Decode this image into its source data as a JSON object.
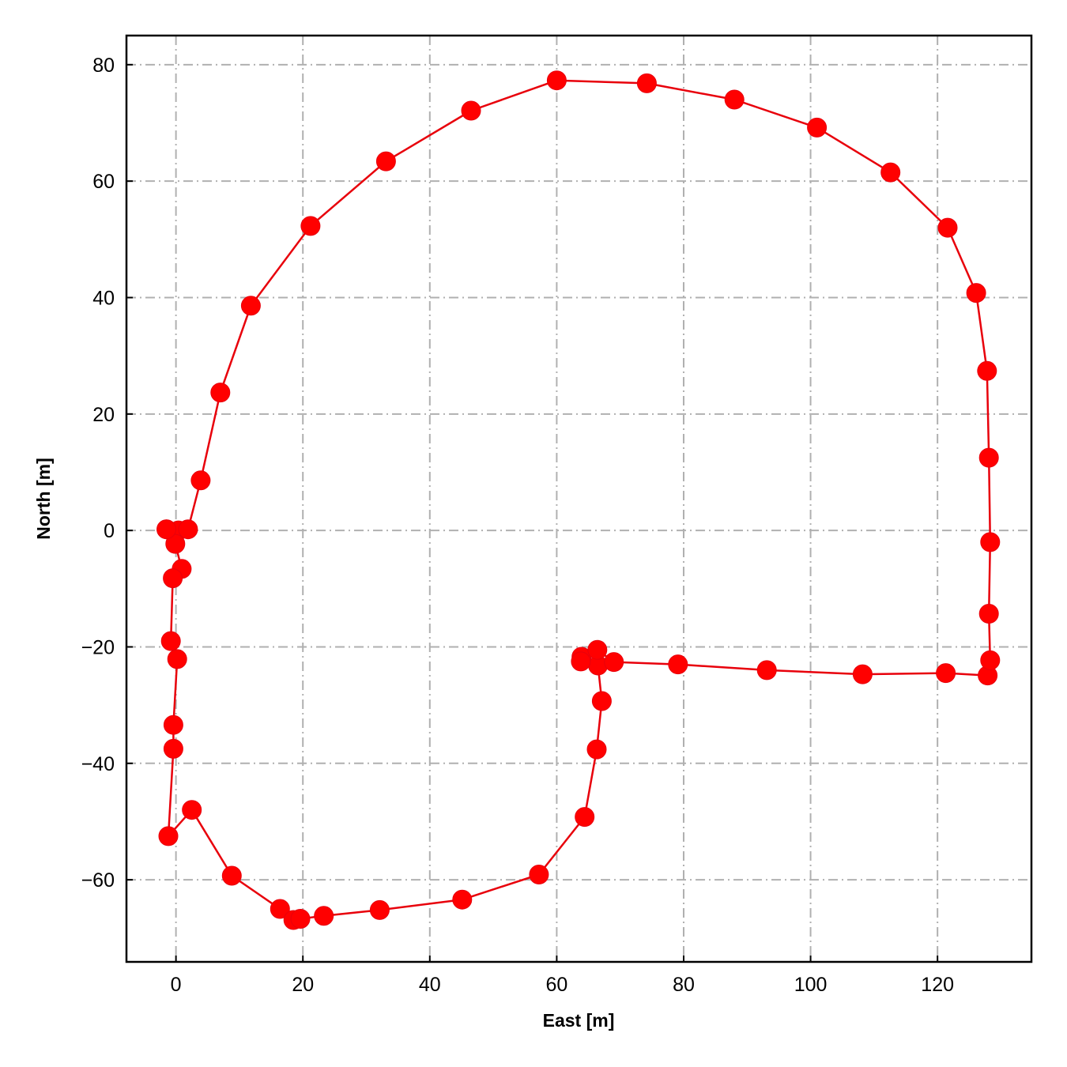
{
  "chart_data": {
    "type": "line",
    "title": "",
    "xlabel": "East [m]",
    "ylabel": "North [m]",
    "xlim": [
      -7.8,
      134.8
    ],
    "ylim": [
      -74.1,
      85.0
    ],
    "xticks": [
      0,
      20,
      40,
      60,
      80,
      100,
      120
    ],
    "yticks": [
      -60,
      -40,
      -20,
      0,
      20,
      40,
      60,
      80
    ],
    "xtick_labels": [
      "0",
      "20",
      "40",
      "60",
      "80",
      "100",
      "120"
    ],
    "ytick_labels": [
      "−60",
      "−40",
      "−20",
      "0",
      "20",
      "40",
      "60",
      "80"
    ],
    "grid": true,
    "colors": {
      "series": "#ff0000",
      "grid": "#b0b0b0"
    },
    "series": [
      {
        "markers": true,
        "x": [
          -1.5,
          0.4,
          -0.1,
          0.9,
          -0.5,
          -0.8,
          0.2,
          -0.4,
          -0.4,
          -1.2,
          2.5,
          8.8,
          16.4,
          18.5,
          19.6,
          23.3,
          32.1,
          45.1,
          57.2,
          64.4,
          66.3,
          67.1,
          66.5,
          63.9,
          63.8,
          66.4,
          69.0,
          79.1,
          93.1,
          108.2,
          121.3,
          127.9,
          128.3,
          128.1,
          128.3,
          128.1,
          127.8,
          126.1,
          121.6,
          112.6,
          101.0,
          88.0,
          74.2,
          60.0,
          46.5,
          33.1,
          21.2,
          11.8,
          7.0,
          3.9,
          1.9,
          -1.5
        ],
        "y": [
          0.2,
          0.0,
          -2.3,
          -6.6,
          -8.2,
          -19.0,
          -22.1,
          -33.4,
          -37.5,
          -52.5,
          -48.0,
          -59.3,
          -65.0,
          -66.9,
          -66.7,
          -66.2,
          -65.2,
          -63.4,
          -59.1,
          -49.2,
          -37.6,
          -29.3,
          -23.2,
          -21.7,
          -22.5,
          -20.5,
          -22.6,
          -23.0,
          -24.0,
          -24.7,
          -24.5,
          -24.9,
          -22.3,
          -14.3,
          -2.0,
          12.5,
          27.4,
          40.8,
          52.0,
          61.5,
          69.2,
          74.0,
          76.8,
          77.3,
          72.1,
          63.4,
          52.3,
          38.6,
          23.7,
          8.6,
          0.2,
          0.2
        ]
      }
    ]
  }
}
